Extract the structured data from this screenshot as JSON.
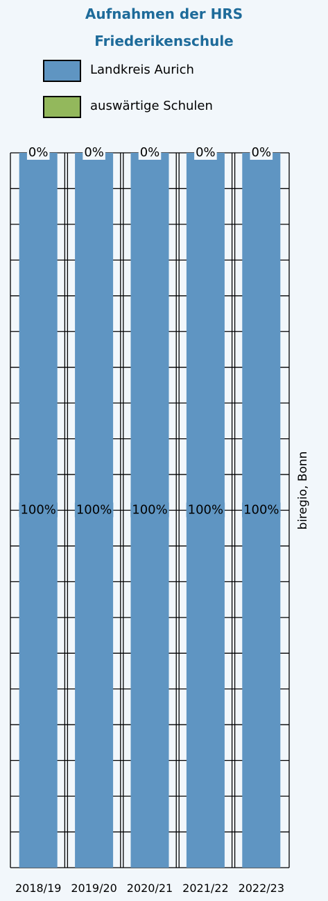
{
  "title": [
    "Aufnahmen der HRS",
    "Friederikenschule"
  ],
  "legend": [
    {
      "label": "Landkreis Aurich",
      "color": "#5f95c2"
    },
    {
      "label": "auswärtige Schulen",
      "color": "#93b85c"
    }
  ],
  "side_note": "biregio, Bonn",
  "chart_data": {
    "type": "bar",
    "stacked": true,
    "categories": [
      "2018/19",
      "2019/20",
      "2020/21",
      "2021/22",
      "2022/23"
    ],
    "series": [
      {
        "name": "Landkreis Aurich",
        "values": [
          100,
          100,
          100,
          100,
          100
        ],
        "labels": [
          "100%",
          "100%",
          "100%",
          "100%",
          "100%"
        ],
        "color": "#5f95c2"
      },
      {
        "name": "auswärtige Schulen",
        "values": [
          0,
          0,
          0,
          0,
          0
        ],
        "labels": [
          "0%",
          "0%",
          "0%",
          "0%",
          "0%"
        ],
        "color": "#93b85c"
      }
    ],
    "ylim": [
      0,
      100
    ],
    "grid": true,
    "legend_position": "top"
  }
}
